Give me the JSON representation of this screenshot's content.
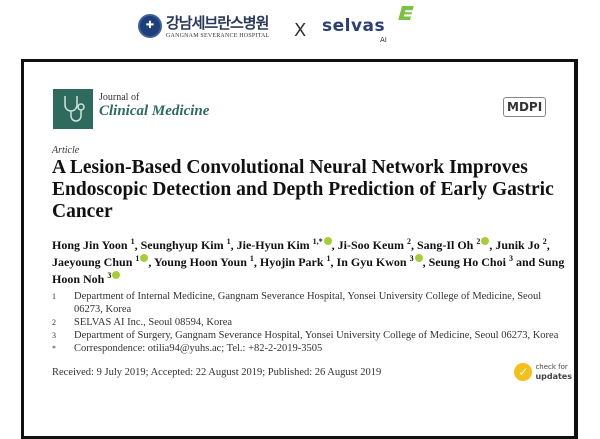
{
  "header": {
    "hospital_korean": "강남세브란스병원",
    "hospital_english": "GANGNAM SEVERANCE HOSPITAL",
    "separator": "X",
    "partner_name": "selvas",
    "partner_sub": "AI"
  },
  "paper": {
    "journal_prefix": "Journal of",
    "journal_name": "Clinical Medicine",
    "publisher": "MDPI",
    "article_type": "Article",
    "title": "A Lesion-Based Convolutional Neural Network Improves Endoscopic Detection and Depth Prediction of Early Gastric Cancer",
    "authors": [
      {
        "name": "Hong Jin Yoon",
        "sup": "1",
        "orcid": false,
        "sep": ", "
      },
      {
        "name": "Seunghyup Kim",
        "sup": "1",
        "orcid": false,
        "sep": ", "
      },
      {
        "name": "Jie-Hyun Kim",
        "sup": "1,*",
        "orcid": true,
        "sep": ", "
      },
      {
        "name": "Ji-Soo Keum",
        "sup": "2",
        "orcid": false,
        "sep": ", "
      },
      {
        "name": "Sang-Il Oh",
        "sup": "2",
        "orcid": true,
        "sep": ", "
      },
      {
        "name": "Junik Jo",
        "sup": "2",
        "orcid": false,
        "sep": ", "
      },
      {
        "name": "Jaeyoung Chun",
        "sup": "1",
        "orcid": true,
        "sep": ", "
      },
      {
        "name": "Young Hoon Youn",
        "sup": "1",
        "orcid": false,
        "sep": ", "
      },
      {
        "name": "Hyojin Park",
        "sup": "1",
        "orcid": false,
        "sep": ", "
      },
      {
        "name": "In Gyu Kwon",
        "sup": "3",
        "orcid": true,
        "sep": ", "
      },
      {
        "name": "Seung Ho Choi",
        "sup": "3",
        "orcid": false,
        "sep": " and "
      },
      {
        "name": "Sung Hoon Noh",
        "sup": "3",
        "orcid": true,
        "sep": ""
      }
    ],
    "affiliations": [
      {
        "num": "1",
        "text": "Department of Internal Medicine, Gangnam Severance Hospital, Yonsei University College of Medicine, Seoul 06273, Korea"
      },
      {
        "num": "2",
        "text": "SELVAS AI Inc., Seoul 08594, Korea"
      },
      {
        "num": "3",
        "text": "Department of Surgery, Gangnam Severance Hospital, Yonsei University College of Medicine, Seoul 06273, Korea"
      },
      {
        "num": "*",
        "text": "Correspondence: otilia94@yuhs.ac; Tel.: +82-2-2019-3505"
      }
    ],
    "dates": "Received: 9 July 2019; Accepted: 22 August 2019; Published: 26 August 2019",
    "check_updates_line1": "check for",
    "check_updates_line2": "updates"
  }
}
